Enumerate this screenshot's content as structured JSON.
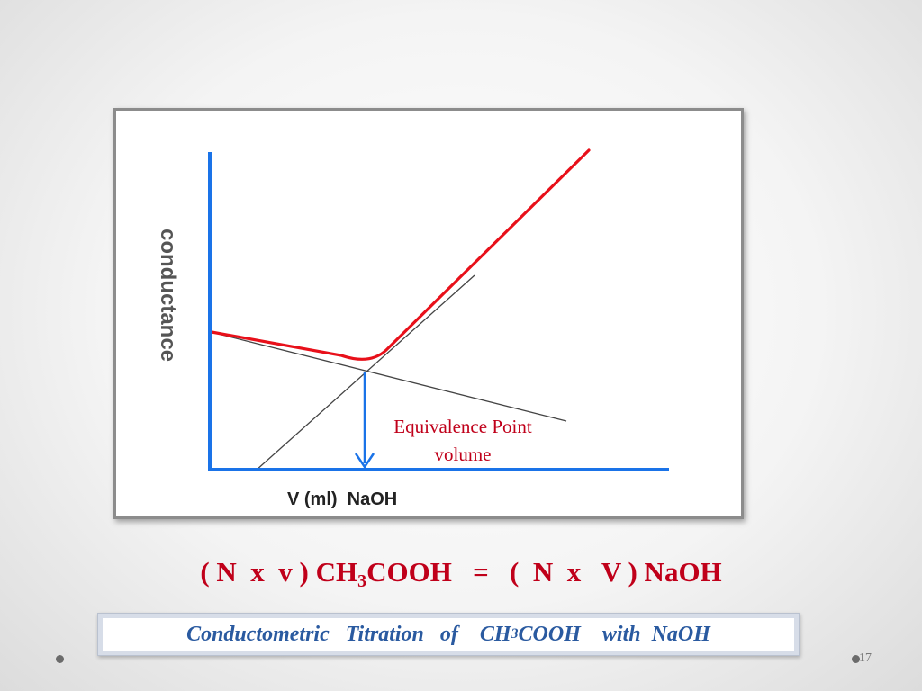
{
  "diagram": {
    "y_axis_label": "conductance",
    "x_axis_label": "V (ml)  NaOH",
    "annotation_line1": "Equivalence Point",
    "annotation_line2": "volume",
    "colors": {
      "axis": "#1a73e8",
      "curve": "#e8101a",
      "tangent": "#444444",
      "annotation": "#c0001a",
      "arrow": "#1a73e8"
    }
  },
  "equation": {
    "part1": "( N  x  v ) CH",
    "sub1": "3",
    "part2": "COOH   =   (  N  x   V ) NaOH"
  },
  "caption": {
    "part1": "Conductometric   Titration   of    CH",
    "sub1": "3",
    "part2": "COOH    with  NaOH"
  },
  "slide": {
    "page_number": "17"
  }
}
